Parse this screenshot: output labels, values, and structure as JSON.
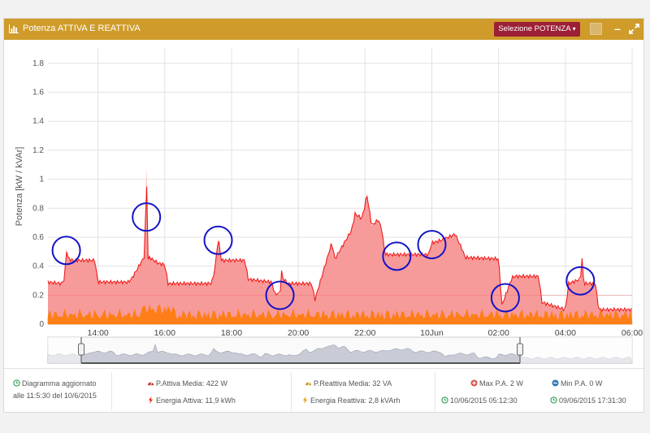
{
  "header": {
    "title": "Potenza ATTIVA E REATTIVA",
    "select_label": "Selezione POTENZA",
    "accent": "#cf9b2a",
    "button_color": "#9c1f35"
  },
  "chart_data": {
    "type": "area",
    "ylabel": "Potenza [kW / kVAr]",
    "ylim": [
      0,
      1.9
    ],
    "yticks": [
      "0",
      "0.2",
      "0.4",
      "0.6",
      "0.8",
      "1",
      "1.2",
      "1.4",
      "1.6",
      "1.8"
    ],
    "xticks": [
      "14:00",
      "16:00",
      "18:00",
      "20:00",
      "22:00",
      "10Jun",
      "02:00",
      "04:00",
      "06:00"
    ],
    "grid": true,
    "series": [
      {
        "name": "P.Attiva",
        "color": "#f21b1b",
        "fill": "#f79a9a",
        "x": [
          12.5,
          12.9,
          13.0,
          13.05,
          13.1,
          13.2,
          13.9,
          14.0,
          14.9,
          15.0,
          15.4,
          15.45,
          15.5,
          15.55,
          15.8,
          16.0,
          16.1,
          17.4,
          17.5,
          17.6,
          17.7,
          18.4,
          18.5,
          19.2,
          19.3,
          19.45,
          19.5,
          19.55,
          19.7,
          20.4,
          20.5,
          21.0,
          21.1,
          21.6,
          21.7,
          21.9,
          22.0,
          22.05,
          22.2,
          22.4,
          22.5,
          22.6,
          23.9,
          24.0,
          24.3,
          24.7,
          24.9,
          25.0,
          26.0,
          26.1,
          26.4,
          26.5,
          27.2,
          27.3,
          28.0,
          28.1,
          28.45,
          28.5,
          28.55,
          28.9,
          29.0,
          30.0
        ],
        "y": [
          0.29,
          0.28,
          0.31,
          0.52,
          0.46,
          0.44,
          0.44,
          0.29,
          0.29,
          0.31,
          0.47,
          1.08,
          0.45,
          0.46,
          0.42,
          0.41,
          0.28,
          0.28,
          0.38,
          0.59,
          0.44,
          0.44,
          0.31,
          0.29,
          0.21,
          0.21,
          0.36,
          0.31,
          0.28,
          0.28,
          0.17,
          0.56,
          0.45,
          0.65,
          0.76,
          0.73,
          0.82,
          0.9,
          0.68,
          0.72,
          0.65,
          0.48,
          0.48,
          0.56,
          0.58,
          0.62,
          0.52,
          0.46,
          0.45,
          0.13,
          0.32,
          0.33,
          0.33,
          0.15,
          0.1,
          0.28,
          0.31,
          0.45,
          0.28,
          0.28,
          0.1,
          0.1
        ],
        "values_note": "read from plot"
      },
      {
        "name": "P.Reattiva",
        "color": "#ff7a00",
        "level": 0.06
      }
    ],
    "highlights_x": [
      13.05,
      15.45,
      17.6,
      19.45,
      22.95,
      24.0,
      26.2,
      28.45
    ]
  },
  "navigator": {
    "handle_color": "#888888"
  },
  "footer": {
    "updated_line1": "Diagramma aggiornato",
    "updated_line2": "alle 11:5:30 del 10/6/2015",
    "pa_media": "P.Attiva Media: 422 W",
    "energia_attiva": "Energia Attiva: 11,9 kWh",
    "pr_media": "P.Reattiva Media: 32 VA",
    "energia_reattiva": "Energia Reattiva: 2,8 kVArh",
    "max_pa": "Max P.A. 2 W",
    "min_pa": "Min P.A. 0 W",
    "max_time": "10/06/2015 05:12:30",
    "min_time": "09/06/2015 17:31:30"
  }
}
